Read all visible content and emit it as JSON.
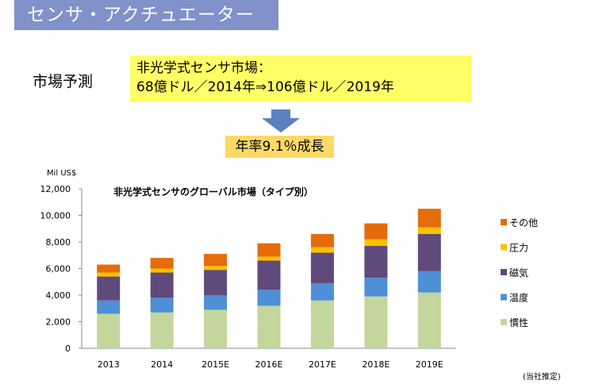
{
  "header": {
    "title": "センサ・アクチュエーター"
  },
  "forecast_label": "市場予測",
  "headline": {
    "line1": "非光学式センサ市場：",
    "line2": "68億ドル／2014年⇒106億ドル／2019年"
  },
  "growth": "年率9.1％成長",
  "note": "(当社推定)",
  "colors": {
    "title_bar": "#8191c9",
    "headline_bg": "#ffff66",
    "growth_bg": "#ffd966",
    "arrow": "#5b7fbf"
  },
  "chart_data": {
    "type": "bar",
    "stacked": true,
    "title": "非光学式センサのグローバル市場（タイプ別）",
    "ylabel": "Mil US$",
    "ylim": [
      0,
      12000
    ],
    "yticks": [
      0,
      2000,
      4000,
      6000,
      8000,
      10000,
      12000
    ],
    "ytick_labels": [
      "0",
      "2,000",
      "4,000",
      "6,000",
      "8,000",
      "10,000",
      "12,000"
    ],
    "categories": [
      "2013",
      "2014",
      "2015E",
      "2016E",
      "2017E",
      "2018E",
      "2019E"
    ],
    "series": [
      {
        "name": "慣性",
        "color": "#c3d69b",
        "values": [
          2600,
          2700,
          2900,
          3200,
          3600,
          3900,
          4200
        ]
      },
      {
        "name": "温度",
        "color": "#4f8fd6",
        "values": [
          1000,
          1100,
          1100,
          1200,
          1300,
          1400,
          1600
        ]
      },
      {
        "name": "磁気",
        "color": "#604a7b",
        "values": [
          1800,
          1900,
          1900,
          2200,
          2300,
          2400,
          2800
        ]
      },
      {
        "name": "圧力",
        "color": "#ffc000",
        "values": [
          300,
          300,
          300,
          300,
          400,
          500,
          500
        ]
      },
      {
        "name": "その他",
        "color": "#e46c0a",
        "values": [
          600,
          800,
          900,
          1000,
          1000,
          1200,
          1400
        ]
      }
    ],
    "legend_position": "right",
    "grid": false
  }
}
